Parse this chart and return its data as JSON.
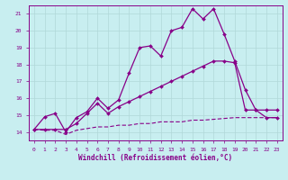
{
  "xlabel": "Windchill (Refroidissement éolien,°C)",
  "xlim": [
    -0.5,
    23.5
  ],
  "ylim": [
    13.5,
    21.5
  ],
  "yticks": [
    14,
    15,
    16,
    17,
    18,
    19,
    20,
    21
  ],
  "xticks": [
    0,
    1,
    2,
    3,
    4,
    5,
    6,
    7,
    8,
    9,
    10,
    11,
    12,
    13,
    14,
    15,
    16,
    17,
    18,
    19,
    20,
    21,
    22,
    23
  ],
  "bg_color": "#c8eef0",
  "grid_color": "#b0d8d8",
  "line_color": "#880088",
  "line1_x": [
    0,
    1,
    2,
    3,
    4,
    5,
    6,
    7,
    8,
    9,
    10,
    11,
    12,
    13,
    14,
    15,
    16,
    17,
    18,
    19,
    20,
    21,
    22,
    23
  ],
  "line1_y": [
    14.15,
    14.9,
    15.1,
    14.0,
    14.85,
    15.2,
    16.0,
    15.4,
    15.9,
    17.5,
    19.0,
    19.1,
    18.5,
    20.0,
    20.2,
    21.3,
    20.7,
    21.3,
    19.8,
    18.2,
    16.5,
    15.3,
    14.85,
    14.85
  ],
  "line2_x": [
    0,
    1,
    2,
    3,
    4,
    5,
    6,
    7,
    8,
    9,
    10,
    11,
    12,
    13,
    14,
    15,
    16,
    17,
    18,
    19,
    20,
    21,
    22,
    23
  ],
  "line2_y": [
    14.15,
    14.15,
    14.15,
    14.15,
    14.5,
    15.1,
    15.7,
    15.1,
    15.5,
    15.8,
    16.1,
    16.4,
    16.7,
    17.0,
    17.3,
    17.6,
    17.9,
    18.2,
    18.2,
    18.1,
    15.3,
    15.3,
    15.3,
    15.3
  ],
  "line3_x": [
    0,
    1,
    2,
    3,
    4,
    5,
    6,
    7,
    8,
    9,
    10,
    11,
    12,
    13,
    14,
    15,
    16,
    17,
    18,
    19,
    20,
    21,
    22,
    23
  ],
  "line3_y": [
    14.15,
    14.1,
    14.1,
    13.85,
    14.1,
    14.2,
    14.3,
    14.3,
    14.4,
    14.4,
    14.5,
    14.5,
    14.6,
    14.6,
    14.6,
    14.7,
    14.7,
    14.75,
    14.8,
    14.85,
    14.85,
    14.85,
    14.85,
    14.85
  ]
}
